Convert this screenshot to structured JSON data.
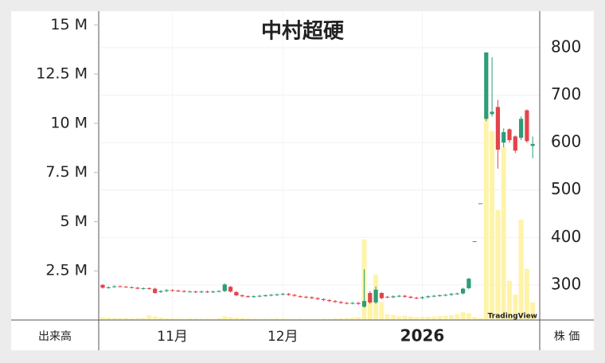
{
  "chart_data": {
    "type": "candlestick",
    "title": "中村超硬",
    "y2_axis_label": "出来高",
    "y_axis_label": "株 価",
    "watermark": "TradingView",
    "up_color": "#2e9c78",
    "down_color": "#e3444b",
    "volume_color": "#fff3a8",
    "grid": true,
    "categories": [
      null,
      null,
      null,
      null,
      null,
      null,
      null,
      null,
      null,
      null,
      null,
      null,
      "11月",
      null,
      null,
      null,
      null,
      null,
      null,
      null,
      null,
      null,
      null,
      null,
      null,
      null,
      null,
      null,
      null,
      null,
      null,
      "12月",
      null,
      null,
      null,
      null,
      null,
      null,
      null,
      null,
      null,
      null,
      null,
      null,
      null,
      null,
      null,
      null,
      null,
      null,
      null,
      null,
      null,
      null,
      null,
      "2026",
      null,
      null,
      null,
      null,
      null,
      null,
      null,
      null,
      null,
      null,
      null,
      null,
      null,
      null,
      null,
      null,
      null,
      null,
      null
    ],
    "open": [
      300,
      294,
      296,
      297,
      296,
      295,
      294,
      292,
      293,
      292,
      285,
      287,
      289,
      288,
      287,
      286,
      286,
      285,
      286,
      285,
      286,
      287,
      296,
      285,
      278,
      276,
      275,
      276,
      277,
      278,
      279,
      280,
      281,
      279,
      276,
      275,
      274,
      272,
      270,
      268,
      266,
      264,
      262,
      261,
      262,
      254,
      283,
      263,
      283,
      275,
      274,
      276,
      277,
      275,
      273,
      272,
      274,
      276,
      277,
      278,
      279,
      281,
      282,
      293,
      392,
      472,
      650,
      660,
      675,
      600,
      628,
      613,
      610,
      668,
      593
    ],
    "high": [
      302,
      297,
      299,
      299,
      298,
      297,
      296,
      295,
      295,
      294,
      289,
      291,
      291,
      290,
      289,
      288,
      288,
      288,
      288,
      288,
      289,
      303,
      298,
      287,
      280,
      278,
      278,
      279,
      280,
      281,
      282,
      283,
      283,
      281,
      278,
      277,
      276,
      274,
      272,
      270,
      268,
      266,
      264,
      264,
      264,
      333,
      287,
      297,
      285,
      277,
      278,
      279,
      279,
      277,
      275,
      276,
      278,
      279,
      280,
      281,
      283,
      284,
      294,
      315,
      392,
      472,
      790,
      780,
      690,
      630,
      630,
      615,
      655,
      670,
      613
    ],
    "low": [
      292,
      292,
      294,
      295,
      294,
      293,
      291,
      290,
      290,
      281,
      283,
      285,
      286,
      285,
      284,
      284,
      283,
      283,
      283,
      283,
      284,
      285,
      284,
      276,
      274,
      273,
      273,
      274,
      275,
      276,
      277,
      278,
      277,
      275,
      273,
      272,
      270,
      268,
      266,
      264,
      262,
      260,
      259,
      259,
      258,
      252,
      260,
      260,
      270,
      272,
      272,
      274,
      273,
      271,
      270,
      270,
      272,
      274,
      275,
      276,
      277,
      279,
      280,
      291,
      392,
      472,
      645,
      655,
      545,
      590,
      600,
      578,
      605,
      600,
      567
    ],
    "close": [
      294,
      295,
      297,
      296,
      295,
      294,
      292,
      293,
      292,
      283,
      287,
      289,
      288,
      287,
      286,
      286,
      285,
      286,
      285,
      286,
      287,
      301,
      286,
      278,
      276,
      275,
      276,
      277,
      278,
      279,
      280,
      281,
      279,
      277,
      275,
      274,
      272,
      270,
      268,
      266,
      264,
      262,
      261,
      262,
      260,
      266,
      263,
      290,
      272,
      274,
      276,
      277,
      275,
      273,
      272,
      274,
      276,
      277,
      278,
      279,
      281,
      282,
      292,
      313,
      392,
      472,
      790,
      665,
      585,
      622,
      605,
      583,
      650,
      603,
      597
    ],
    "volume": [
      150000,
      120000,
      100000,
      90000,
      100000,
      80000,
      90000,
      110000,
      250000,
      180000,
      120000,
      90000,
      80000,
      70000,
      60000,
      80000,
      70000,
      60000,
      70000,
      60000,
      90000,
      200000,
      150000,
      120000,
      100000,
      80000,
      70000,
      60000,
      70000,
      60000,
      80000,
      70000,
      60000,
      50000,
      60000,
      50000,
      60000,
      50000,
      70000,
      60000,
      80000,
      90000,
      100000,
      120000,
      150000,
      4100000,
      1000000,
      2300000,
      900000,
      300000,
      250000,
      200000,
      220000,
      180000,
      150000,
      170000,
      160000,
      180000,
      200000,
      220000,
      250000,
      300000,
      400000,
      350000,
      150000,
      100000,
      10500000,
      9600000,
      5600000,
      8800000,
      2000000,
      1300000,
      5100000,
      2600000,
      900000
    ],
    "ylim": [
      226,
      877
    ],
    "yticks": [
      300,
      400,
      500,
      600,
      700,
      800
    ],
    "y2lim": [
      0,
      15700000
    ],
    "y2ticks": [
      {
        "value": 2500000,
        "label": "2.5 M"
      },
      {
        "value": 5000000,
        "label": "5 M"
      },
      {
        "value": 7500000,
        "label": "7.5 M"
      },
      {
        "value": 10000000,
        "label": "10 M"
      },
      {
        "value": 12500000,
        "label": "12.5 M"
      },
      {
        "value": 15000000,
        "label": "15 M"
      }
    ]
  }
}
